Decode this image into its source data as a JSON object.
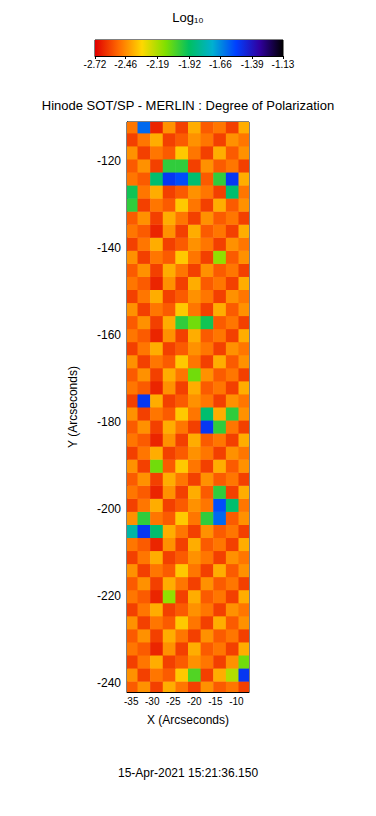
{
  "chart_data": {
    "type": "heatmap",
    "title": "Hinode SOT/SP - MERLIN : Degree of Polarization",
    "x_label": "X (Arcseconds)",
    "y_label": "Y (Arcseconds)",
    "annotation": "15-Apr-2021 15:21:36.150",
    "xlim": [
      -36,
      -7
    ],
    "ylim": [
      -242,
      -111
    ],
    "xticks": [
      -35,
      -30,
      -25,
      -20,
      -15,
      -10
    ],
    "yticks": [
      -240,
      -220,
      -200,
      -180,
      -160,
      -140,
      -120
    ],
    "x": [
      -35,
      -32,
      -29,
      -26,
      -23,
      -20,
      -17,
      -14,
      -11,
      -8
    ],
    "y": [
      -241,
      -238,
      -235,
      -232,
      -229,
      -226,
      -223,
      -220,
      -217,
      -214,
      -211,
      -208,
      -205,
      -202,
      -199,
      -196,
      -193,
      -190,
      -187,
      -184,
      -181,
      -178,
      -175,
      -172,
      -169,
      -166,
      -163,
      -160,
      -157,
      -154,
      -151,
      -148,
      -145,
      -142,
      -139,
      -136,
      -133,
      -130,
      -127,
      -124,
      -121,
      -118,
      -115,
      -112
    ],
    "values": [
      [
        -2.55,
        -2.45,
        -2.6,
        -2.4,
        -2.5,
        -2.6,
        -2.45,
        -2.55,
        -2.5,
        -2.6
      ],
      [
        -2.45,
        -2.6,
        -2.5,
        -2.55,
        -2.35,
        -2.05,
        -2.6,
        -2.4,
        -2.2,
        -1.5
      ],
      [
        -2.6,
        -2.5,
        -2.4,
        -2.6,
        -2.55,
        -2.45,
        -2.5,
        -2.6,
        -2.45,
        -2.1
      ],
      [
        -2.5,
        -2.55,
        -2.65,
        -2.45,
        -2.6,
        -2.4,
        -2.55,
        -2.5,
        -2.6,
        -2.4
      ],
      [
        -2.55,
        -2.45,
        -2.6,
        -2.4,
        -2.5,
        -2.6,
        -2.45,
        -2.55,
        -2.5,
        -2.6
      ],
      [
        -2.45,
        -2.6,
        -2.5,
        -2.55,
        -2.35,
        -2.5,
        -2.6,
        -2.4,
        -2.55,
        -2.45
      ],
      [
        -2.6,
        -2.5,
        -2.4,
        -2.6,
        -2.55,
        -2.45,
        -2.5,
        -2.6,
        -2.45,
        -2.5
      ],
      [
        -2.5,
        -2.55,
        -2.65,
        -2.15,
        -2.6,
        -2.4,
        -2.55,
        -2.5,
        -2.6,
        -2.4
      ],
      [
        -2.55,
        -2.45,
        -2.6,
        -2.4,
        -2.5,
        -2.6,
        -2.45,
        -2.55,
        -2.5,
        -2.6
      ],
      [
        -2.45,
        -2.6,
        -2.5,
        -2.55,
        -2.35,
        -2.5,
        -2.6,
        -2.4,
        -2.55,
        -2.45
      ],
      [
        -2.6,
        -2.5,
        -2.4,
        -2.6,
        -2.55,
        -2.45,
        -2.5,
        -2.6,
        -2.45,
        -2.5
      ],
      [
        -2.5,
        -2.55,
        -2.65,
        -2.45,
        -2.6,
        -2.4,
        -2.55,
        -2.5,
        -2.6,
        -2.4
      ],
      [
        -1.8,
        -1.5,
        -1.9,
        -2.4,
        -2.5,
        -2.6,
        -2.45,
        -2.55,
        -2.5,
        -2.6
      ],
      [
        -2.45,
        -2.0,
        -2.5,
        -2.55,
        -2.35,
        -2.5,
        -2.0,
        -1.6,
        -2.55,
        -2.45
      ],
      [
        -2.6,
        -2.5,
        -2.4,
        -2.6,
        -2.55,
        -2.45,
        -2.5,
        -1.55,
        -1.9,
        -2.5
      ],
      [
        -2.5,
        -2.55,
        -2.65,
        -2.45,
        -2.6,
        -2.4,
        -2.55,
        -2.0,
        -2.6,
        -2.4
      ],
      [
        -2.55,
        -2.45,
        -2.6,
        -2.4,
        -2.5,
        -2.6,
        -2.45,
        -2.55,
        -2.5,
        -2.6
      ],
      [
        -2.45,
        -2.6,
        -2.1,
        -2.55,
        -2.35,
        -2.5,
        -2.6,
        -2.4,
        -2.55,
        -2.45
      ],
      [
        -2.6,
        -2.5,
        -2.4,
        -2.6,
        -2.55,
        -2.45,
        -2.5,
        -2.6,
        -2.45,
        -2.5
      ],
      [
        -2.5,
        -2.55,
        -2.65,
        -2.45,
        -2.6,
        -2.4,
        -2.55,
        -2.5,
        -2.6,
        -2.4
      ],
      [
        -2.55,
        -2.45,
        -2.6,
        -2.4,
        -2.5,
        -2.6,
        -1.5,
        -2.0,
        -2.5,
        -2.6
      ],
      [
        -2.45,
        -2.6,
        -2.5,
        -2.55,
        -2.35,
        -2.5,
        -1.9,
        -2.4,
        -2.0,
        -2.45
      ],
      [
        -2.6,
        -1.5,
        -2.4,
        -2.6,
        -2.55,
        -2.45,
        -2.5,
        -2.6,
        -2.45,
        -2.5
      ],
      [
        -2.5,
        -2.55,
        -2.65,
        -2.45,
        -2.6,
        -2.4,
        -2.55,
        -2.5,
        -2.6,
        -2.4
      ],
      [
        -2.55,
        -2.45,
        -2.6,
        -2.4,
        -2.5,
        -2.1,
        -2.45,
        -2.55,
        -2.5,
        -2.6
      ],
      [
        -2.45,
        -2.6,
        -2.5,
        -2.55,
        -2.35,
        -2.5,
        -2.6,
        -2.4,
        -2.55,
        -2.45
      ],
      [
        -2.6,
        -2.5,
        -2.4,
        -2.6,
        -2.55,
        -2.45,
        -2.5,
        -2.6,
        -2.45,
        -2.5
      ],
      [
        -2.5,
        -2.55,
        -2.65,
        -2.45,
        -2.6,
        -2.4,
        -2.55,
        -2.5,
        -2.6,
        -2.4
      ],
      [
        -2.55,
        -2.45,
        -2.6,
        -2.4,
        -2.0,
        -2.1,
        -1.95,
        -2.55,
        -2.5,
        -2.6
      ],
      [
        -2.45,
        -2.6,
        -2.5,
        -2.55,
        -2.35,
        -2.5,
        -2.6,
        -2.4,
        -2.55,
        -2.45
      ],
      [
        -2.6,
        -2.5,
        -2.4,
        -2.6,
        -2.55,
        -2.45,
        -2.5,
        -2.6,
        -2.45,
        -2.5
      ],
      [
        -2.5,
        -2.55,
        -2.65,
        -2.45,
        -2.6,
        -2.4,
        -2.55,
        -2.5,
        -2.6,
        -2.4
      ],
      [
        -2.55,
        -2.45,
        -2.6,
        -2.4,
        -2.5,
        -2.6,
        -2.45,
        -2.55,
        -2.5,
        -2.6
      ],
      [
        -2.45,
        -2.6,
        -2.5,
        -2.55,
        -2.35,
        -2.5,
        -2.6,
        -2.15,
        -2.55,
        -2.45
      ],
      [
        -2.6,
        -2.5,
        -2.4,
        -2.6,
        -2.55,
        -2.45,
        -2.5,
        -2.6,
        -2.45,
        -2.5
      ],
      [
        -2.5,
        -2.55,
        -2.65,
        -2.45,
        -2.6,
        -2.4,
        -2.55,
        -2.5,
        -2.6,
        -2.4
      ],
      [
        -2.55,
        -2.45,
        -2.6,
        -2.4,
        -2.5,
        -2.6,
        -2.45,
        -2.55,
        -2.5,
        -2.6
      ],
      [
        -2.0,
        -2.6,
        -2.5,
        -2.55,
        -2.35,
        -2.5,
        -2.6,
        -2.4,
        -2.55,
        -2.45
      ],
      [
        -1.95,
        -2.5,
        -2.4,
        -2.6,
        -2.55,
        -2.45,
        -2.5,
        -2.6,
        -1.9,
        -2.5
      ],
      [
        -2.5,
        -2.55,
        -1.9,
        -1.5,
        -1.55,
        -1.9,
        -2.55,
        -2.0,
        -1.5,
        -2.4
      ],
      [
        -2.55,
        -2.45,
        -2.6,
        -2.0,
        -2.0,
        -2.6,
        -2.45,
        -2.55,
        -2.5,
        -2.6
      ],
      [
        -2.45,
        -2.6,
        -2.5,
        -2.55,
        -2.35,
        -2.5,
        -2.6,
        -2.4,
        -2.55,
        -2.45
      ],
      [
        -2.6,
        -2.5,
        -2.4,
        -2.6,
        -2.55,
        -2.45,
        -2.5,
        -2.6,
        -2.45,
        -2.5
      ],
      [
        -2.5,
        -1.6,
        -2.65,
        -2.45,
        -2.6,
        -2.4,
        -2.55,
        -2.5,
        -2.6,
        -2.4
      ]
    ],
    "colorbar": {
      "title": "Log₁₀",
      "range": [
        -2.72,
        -1.13
      ],
      "ticks": [
        -2.72,
        -2.46,
        -2.19,
        -1.92,
        -1.66,
        -1.39,
        -1.13
      ]
    }
  }
}
